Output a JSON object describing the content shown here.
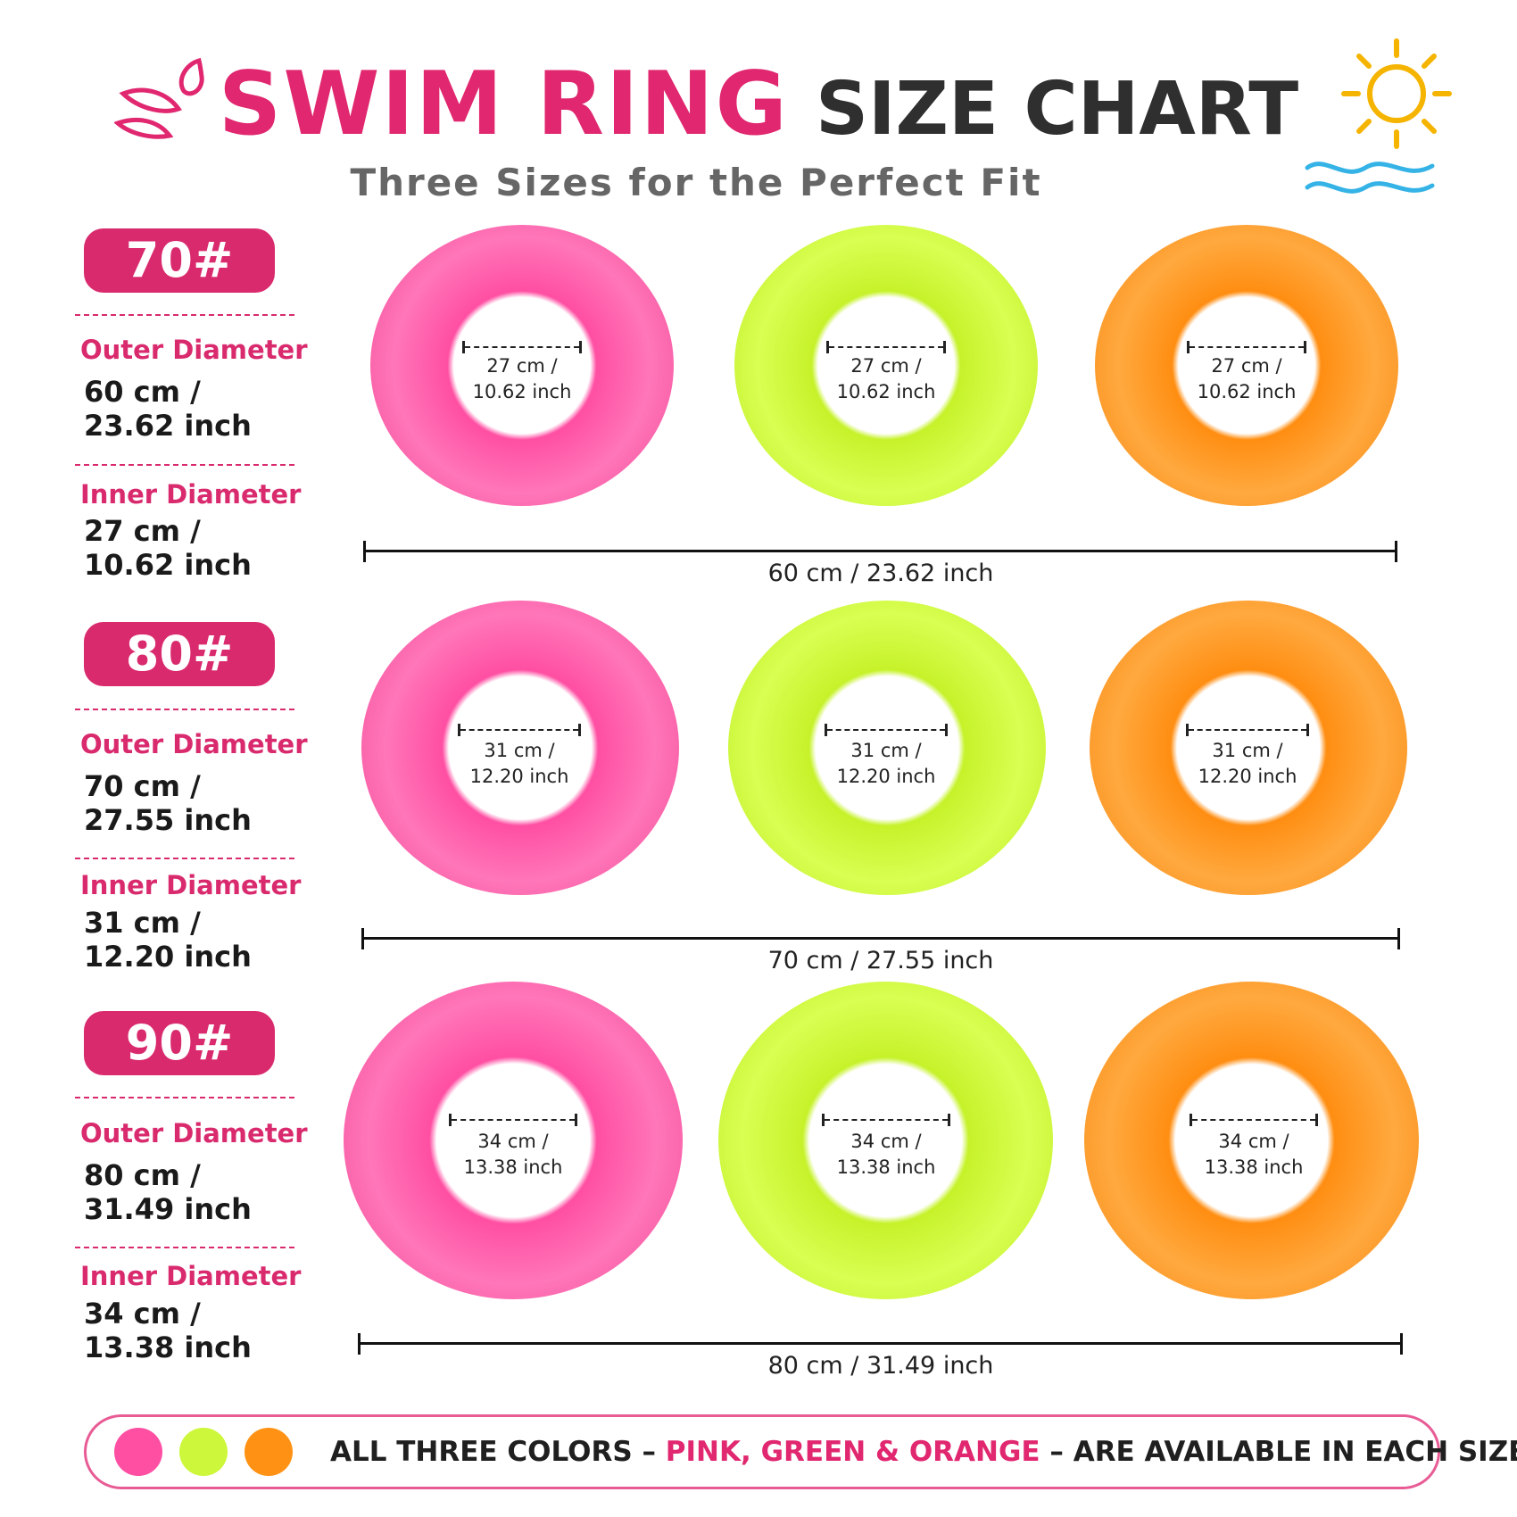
{
  "header": {
    "title_part1": "SWIM RING",
    "title_part2": "SIZE CHART",
    "subtitle": "Three Sizes for the Perfect Fit"
  },
  "decor_icons": [
    "water-splash-icon",
    "sun-icon",
    "waves-icon"
  ],
  "colors": {
    "pink": "#ff4fa3",
    "green": "#d3ff3a",
    "orange": "#ff951f",
    "accent": "#d92a6e"
  },
  "sizes": [
    {
      "badge": "70#",
      "outer_label": "Outer Diameter",
      "outer_value_line1": "60 cm /",
      "outer_value_line2": "23.62 inch",
      "inner_label": "Inner Diameter",
      "inner_value_line1": "27 cm /",
      "inner_value_line2": "10.62 inch",
      "ring_inner_line1": "27 cm /",
      "ring_inner_line2": "10.62 inch",
      "width_label": "60 cm / 23.62 inch"
    },
    {
      "badge": "80#",
      "outer_label": "Outer Diameter",
      "outer_value_line1": "70 cm /",
      "outer_value_line2": "27.55 inch",
      "inner_label": "Inner Diameter",
      "inner_value_line1": "31 cm /",
      "inner_value_line2": "12.20 inch",
      "ring_inner_line1": "31 cm /",
      "ring_inner_line2": "12.20 inch",
      "width_label": "70 cm / 27.55 inch"
    },
    {
      "badge": "90#",
      "outer_label": "Outer Diameter",
      "outer_value_line1": "80 cm /",
      "outer_value_line2": "31.49 inch",
      "inner_label": "Inner Diameter",
      "inner_value_line1": "34 cm /",
      "inner_value_line2": "13.38 inch",
      "ring_inner_line1": "34 cm /",
      "ring_inner_line2": "13.38 inch",
      "width_label": "80 cm / 31.49 inch"
    }
  ],
  "footer": {
    "text_before": "ALL THREE COLORS –",
    "text_colors": "PINK, GREEN & ORANGE",
    "text_after": "– ARE AVAILABLE IN EACH SIZE!"
  }
}
